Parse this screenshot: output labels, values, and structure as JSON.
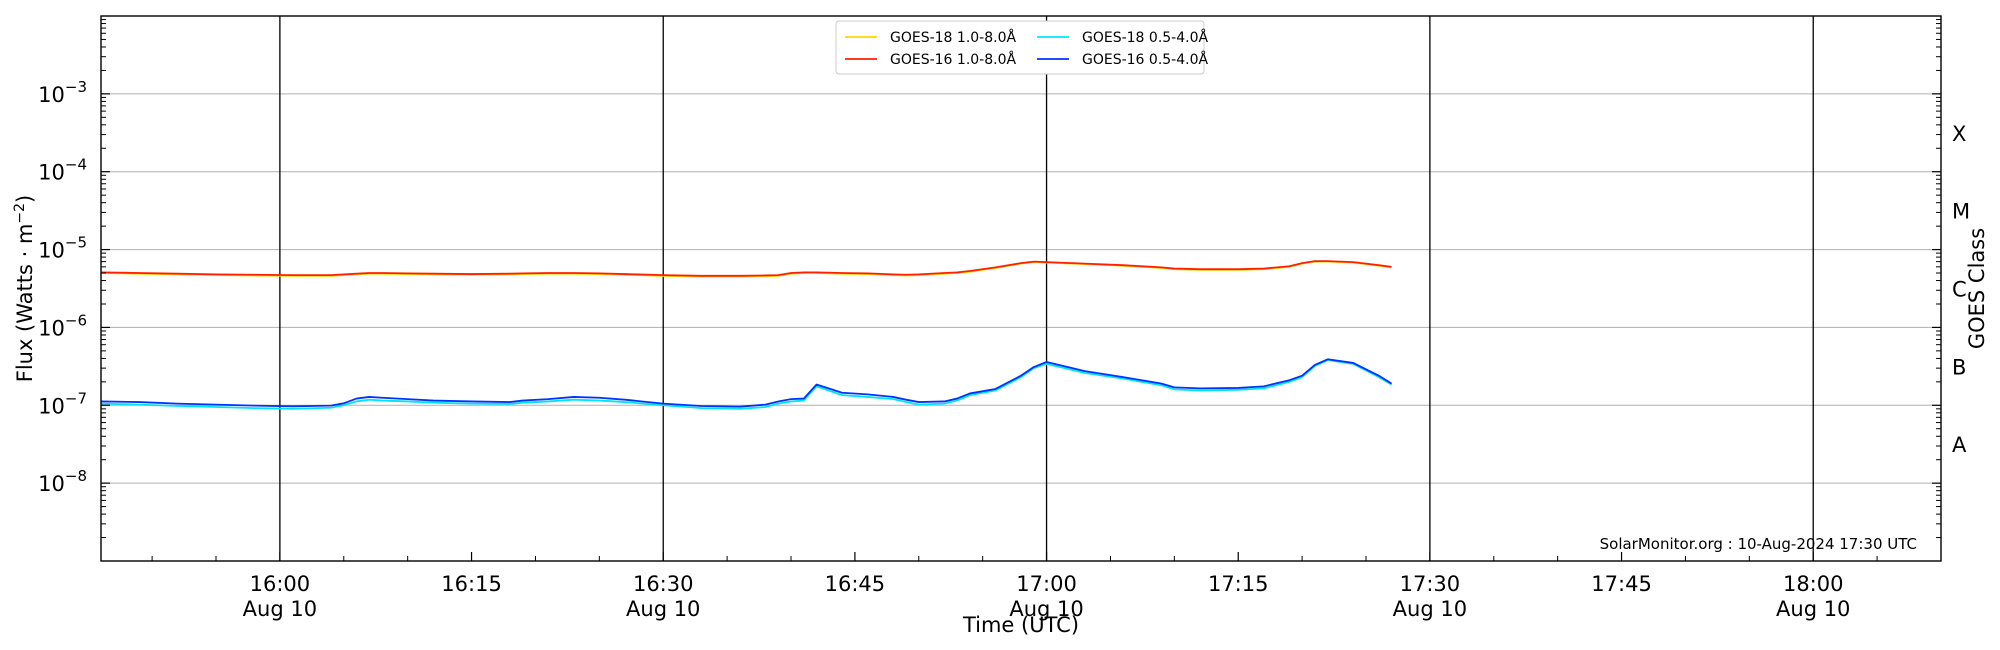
{
  "chart_data": {
    "type": "line",
    "title": "",
    "xlabel": "Time (UTC)",
    "ylabel": "Flux (Watts · m",
    "ylabel_sup": "−2",
    "ylabel_close": ")",
    "right_ylabel": "GOES Class",
    "y_scale": "log",
    "ylim": [
      1e-09,
      0.01
    ],
    "xlim": [
      "15:46",
      "18:10"
    ],
    "credit": "SolarMonitor.org : 10-Aug-2024 17:30 UTC",
    "legend_position": "top-center",
    "grid": "horizontal at each decade; vertical lines at 30-minute marks",
    "y_ticks": [
      {
        "value": 0.001,
        "base": "10",
        "exp": "−3"
      },
      {
        "value": 0.0001,
        "base": "10",
        "exp": "−4"
      },
      {
        "value": 1e-05,
        "base": "10",
        "exp": "−5"
      },
      {
        "value": 1e-06,
        "base": "10",
        "exp": "−6"
      },
      {
        "value": 1e-07,
        "base": "10",
        "exp": "−7"
      },
      {
        "value": 1e-08,
        "base": "10",
        "exp": "−8"
      }
    ],
    "x_ticks": [
      {
        "time": "16:00",
        "label": "16:00",
        "date": "Aug 10"
      },
      {
        "time": "16:15",
        "label": "16:15",
        "date": ""
      },
      {
        "time": "16:30",
        "label": "16:30",
        "date": "Aug 10"
      },
      {
        "time": "16:45",
        "label": "16:45",
        "date": ""
      },
      {
        "time": "17:00",
        "label": "17:00",
        "date": "Aug 10"
      },
      {
        "time": "17:15",
        "label": "17:15",
        "date": ""
      },
      {
        "time": "17:30",
        "label": "17:30",
        "date": "Aug 10"
      },
      {
        "time": "17:45",
        "label": "17:45",
        "date": ""
      },
      {
        "time": "18:00",
        "label": "18:00",
        "date": "Aug 10"
      }
    ],
    "vlines": [
      "16:00",
      "16:30",
      "17:00",
      "17:30",
      "18:00"
    ],
    "goes_classes": [
      {
        "label": "X",
        "low": 0.0001,
        "high": 0.001
      },
      {
        "label": "M",
        "low": 1e-05,
        "high": 0.0001
      },
      {
        "label": "C",
        "low": 1e-06,
        "high": 1e-05
      },
      {
        "label": "B",
        "low": 1e-07,
        "high": 1e-06
      },
      {
        "label": "A",
        "low": 1e-08,
        "high": 1e-07
      }
    ],
    "x": [
      "15:46",
      "15:49",
      "15:52",
      "15:55",
      "15:58",
      "16:01",
      "16:04",
      "16:05",
      "16:06",
      "16:07",
      "16:08",
      "16:10",
      "16:12",
      "16:15",
      "16:18",
      "16:19",
      "16:21",
      "16:23",
      "16:25",
      "16:27",
      "16:30",
      "16:33",
      "16:36",
      "16:38",
      "16:39",
      "16:40",
      "16:41",
      "16:42",
      "16:44",
      "16:46",
      "16:48",
      "16:49",
      "16:50",
      "16:52",
      "16:53",
      "16:54",
      "16:56",
      "16:58",
      "16:59",
      "17:00",
      "17:03",
      "17:06",
      "17:09",
      "17:10",
      "17:12",
      "17:15",
      "17:17",
      "17:19",
      "17:20",
      "17:21",
      "17:22",
      "17:24",
      "17:25",
      "17:26",
      "17:27"
    ],
    "series": [
      {
        "name": "GOES-18 1.0-8.0Å",
        "color": "#ffd700",
        "values": [
          5e-06,
          4.9e-06,
          4.8e-06,
          4.7e-06,
          4.65e-06,
          4.6e-06,
          4.6e-06,
          4.7e-06,
          4.8e-06,
          4.9e-06,
          4.9e-06,
          4.85e-06,
          4.8e-06,
          4.75e-06,
          4.8e-06,
          4.85e-06,
          4.9e-06,
          4.9e-06,
          4.85e-06,
          4.75e-06,
          4.6e-06,
          4.5e-06,
          4.5e-06,
          4.55e-06,
          4.6e-06,
          4.9e-06,
          5e-06,
          5e-06,
          4.9e-06,
          4.85e-06,
          4.7e-06,
          4.65e-06,
          4.7e-06,
          4.9e-06,
          5e-06,
          5.2e-06,
          5.8e-06,
          6.6e-06,
          6.9e-06,
          6.8e-06,
          6.5e-06,
          6.2e-06,
          5.8e-06,
          5.6e-06,
          5.5e-06,
          5.5e-06,
          5.6e-06,
          6e-06,
          6.6e-06,
          7e-06,
          7e-06,
          6.8e-06,
          6.5e-06,
          6.2e-06,
          5.9e-06
        ]
      },
      {
        "name": "GOES-16 1.0-8.0Å",
        "color": "#ff2000",
        "values": [
          5.1e-06,
          5e-06,
          4.9e-06,
          4.8e-06,
          4.75e-06,
          4.7e-06,
          4.7e-06,
          4.8e-06,
          4.9e-06,
          5e-06,
          5e-06,
          4.95e-06,
          4.9e-06,
          4.85e-06,
          4.9e-06,
          4.95e-06,
          5e-06,
          5e-06,
          4.95e-06,
          4.85e-06,
          4.7e-06,
          4.6e-06,
          4.6e-06,
          4.65e-06,
          4.7e-06,
          5e-06,
          5.1e-06,
          5.1e-06,
          5e-06,
          4.95e-06,
          4.8e-06,
          4.75e-06,
          4.8e-06,
          5e-06,
          5.1e-06,
          5.3e-06,
          5.9e-06,
          6.7e-06,
          7e-06,
          6.9e-06,
          6.6e-06,
          6.3e-06,
          5.9e-06,
          5.7e-06,
          5.6e-06,
          5.6e-06,
          5.7e-06,
          6.1e-06,
          6.7e-06,
          7.1e-06,
          7.1e-06,
          6.9e-06,
          6.6e-06,
          6.3e-06,
          6e-06
        ]
      },
      {
        "name": "GOES-18 0.5-4.0Å",
        "color": "#00e5ff",
        "values": [
          1.05e-07,
          1.02e-07,
          9.8e-08,
          9.5e-08,
          9.2e-08,
          9e-08,
          9.3e-08,
          1e-07,
          1.12e-07,
          1.18e-07,
          1.15e-07,
          1.12e-07,
          1.08e-07,
          1.05e-07,
          1.04e-07,
          1.08e-07,
          1.12e-07,
          1.18e-07,
          1.15e-07,
          1.1e-07,
          1e-07,
          9.2e-08,
          9e-08,
          9.5e-08,
          1.05e-07,
          1.12e-07,
          1.15e-07,
          1.75e-07,
          1.35e-07,
          1.28e-07,
          1.2e-07,
          1.1e-07,
          1.02e-07,
          1.05e-07,
          1.15e-07,
          1.35e-07,
          1.55e-07,
          2.3e-07,
          3e-07,
          3.4e-07,
          2.6e-07,
          2.2e-07,
          1.8e-07,
          1.6e-07,
          1.55e-07,
          1.58e-07,
          1.65e-07,
          2e-07,
          2.3e-07,
          3.2e-07,
          3.8e-07,
          3.4e-07,
          2.8e-07,
          2.3e-07,
          1.85e-07
        ]
      },
      {
        "name": "GOES-16 0.5-4.0Å",
        "color": "#0033ff",
        "values": [
          1.12e-07,
          1.1e-07,
          1.05e-07,
          1.02e-07,
          9.9e-08,
          9.7e-08,
          9.9e-08,
          1.06e-07,
          1.22e-07,
          1.28e-07,
          1.25e-07,
          1.2e-07,
          1.15e-07,
          1.12e-07,
          1.1e-07,
          1.15e-07,
          1.2e-07,
          1.28e-07,
          1.25e-07,
          1.18e-07,
          1.05e-07,
          9.8e-08,
          9.6e-08,
          1.02e-07,
          1.12e-07,
          1.2e-07,
          1.22e-07,
          1.85e-07,
          1.45e-07,
          1.38e-07,
          1.28e-07,
          1.18e-07,
          1.1e-07,
          1.12e-07,
          1.22e-07,
          1.42e-07,
          1.62e-07,
          2.4e-07,
          3.1e-07,
          3.6e-07,
          2.75e-07,
          2.3e-07,
          1.9e-07,
          1.7e-07,
          1.65e-07,
          1.67e-07,
          1.75e-07,
          2.1e-07,
          2.4e-07,
          3.3e-07,
          3.9e-07,
          3.5e-07,
          2.9e-07,
          2.4e-07,
          1.9e-07
        ]
      }
    ]
  },
  "colors": {
    "axis": "#000000",
    "grid": "#b0b0b0",
    "background": "#ffffff"
  }
}
